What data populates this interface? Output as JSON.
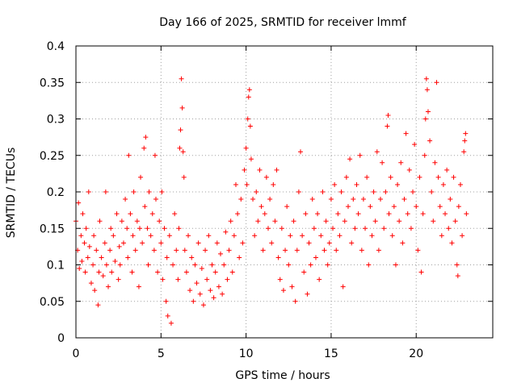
{
  "chart_data": {
    "type": "scatter",
    "title": "Day 166 of 2025, SRMTID for receiver lmmf",
    "xlabel": "GPS time / hours",
    "ylabel": "SRMTID / TECUs",
    "xlim": [
      0,
      24.5
    ],
    "ylim": [
      0,
      0.4
    ],
    "xticks": [
      0,
      5,
      10,
      15,
      20
    ],
    "xtick_labels": [
      "0",
      "5",
      "10",
      "15",
      "20"
    ],
    "yticks": [
      0,
      0.05,
      0.1,
      0.15,
      0.2,
      0.25,
      0.3,
      0.35,
      0.4
    ],
    "ytick_labels": [
      "0",
      "0.05",
      "0.1",
      "0.15",
      "0.2",
      "0.25",
      "0.3",
      "0.35",
      "0.4"
    ],
    "grid": true,
    "marker": "plus",
    "color": "#ff0000",
    "series": [
      {
        "name": "SRMTID",
        "points": [
          [
            0.0,
            0.16
          ],
          [
            0.1,
            0.12
          ],
          [
            0.15,
            0.185
          ],
          [
            0.2,
            0.095
          ],
          [
            0.3,
            0.14
          ],
          [
            0.35,
            0.105
          ],
          [
            0.4,
            0.17
          ],
          [
            0.5,
            0.13
          ],
          [
            0.55,
            0.09
          ],
          [
            0.6,
            0.15
          ],
          [
            0.7,
            0.11
          ],
          [
            0.75,
            0.2
          ],
          [
            0.8,
            0.125
          ],
          [
            0.9,
            0.075
          ],
          [
            1.0,
            0.1
          ],
          [
            1.05,
            0.14
          ],
          [
            1.1,
            0.065
          ],
          [
            1.2,
            0.12
          ],
          [
            1.3,
            0.045
          ],
          [
            1.35,
            0.09
          ],
          [
            1.4,
            0.16
          ],
          [
            1.5,
            0.11
          ],
          [
            1.6,
            0.085
          ],
          [
            1.7,
            0.13
          ],
          [
            1.75,
            0.2
          ],
          [
            1.8,
            0.1
          ],
          [
            1.9,
            0.07
          ],
          [
            2.0,
            0.12
          ],
          [
            2.05,
            0.15
          ],
          [
            2.1,
            0.09
          ],
          [
            2.2,
            0.14
          ],
          [
            2.3,
            0.105
          ],
          [
            2.4,
            0.17
          ],
          [
            2.5,
            0.08
          ],
          [
            2.55,
            0.125
          ],
          [
            2.6,
            0.1
          ],
          [
            2.7,
            0.16
          ],
          [
            2.8,
            0.13
          ],
          [
            2.9,
            0.19
          ],
          [
            3.0,
            0.15
          ],
          [
            3.05,
            0.11
          ],
          [
            3.1,
            0.25
          ],
          [
            3.2,
            0.17
          ],
          [
            3.3,
            0.09
          ],
          [
            3.35,
            0.14
          ],
          [
            3.4,
            0.2
          ],
          [
            3.5,
            0.12
          ],
          [
            3.6,
            0.16
          ],
          [
            3.7,
            0.07
          ],
          [
            3.75,
            0.15
          ],
          [
            3.8,
            0.22
          ],
          [
            3.9,
            0.13
          ],
          [
            4.0,
            0.26
          ],
          [
            4.05,
            0.18
          ],
          [
            4.1,
            0.275
          ],
          [
            4.2,
            0.15
          ],
          [
            4.25,
            0.1
          ],
          [
            4.3,
            0.2
          ],
          [
            4.4,
            0.14
          ],
          [
            4.5,
            0.17
          ],
          [
            4.6,
            0.12
          ],
          [
            4.65,
            0.25
          ],
          [
            4.7,
            0.19
          ],
          [
            4.8,
            0.09
          ],
          [
            4.9,
            0.16
          ],
          [
            5.0,
            0.13
          ],
          [
            5.05,
            0.2
          ],
          [
            5.1,
            0.08
          ],
          [
            5.2,
            0.15
          ],
          [
            5.3,
            0.05
          ],
          [
            5.35,
            0.11
          ],
          [
            5.4,
            0.03
          ],
          [
            5.5,
            0.14
          ],
          [
            5.6,
            0.02
          ],
          [
            5.7,
            0.1
          ],
          [
            5.8,
            0.17
          ],
          [
            5.9,
            0.12
          ],
          [
            6.0,
            0.08
          ],
          [
            6.05,
            0.15
          ],
          [
            6.1,
            0.26
          ],
          [
            6.15,
            0.285
          ],
          [
            6.2,
            0.355
          ],
          [
            6.25,
            0.315
          ],
          [
            6.3,
            0.255
          ],
          [
            6.35,
            0.22
          ],
          [
            6.4,
            0.12
          ],
          [
            6.5,
            0.09
          ],
          [
            6.6,
            0.14
          ],
          [
            6.7,
            0.065
          ],
          [
            6.8,
            0.11
          ],
          [
            6.9,
            0.05
          ],
          [
            7.0,
            0.1
          ],
          [
            7.1,
            0.075
          ],
          [
            7.2,
            0.13
          ],
          [
            7.3,
            0.06
          ],
          [
            7.4,
            0.095
          ],
          [
            7.5,
            0.045
          ],
          [
            7.6,
            0.12
          ],
          [
            7.7,
            0.08
          ],
          [
            7.8,
            0.14
          ],
          [
            7.9,
            0.065
          ],
          [
            8.0,
            0.1
          ],
          [
            8.1,
            0.055
          ],
          [
            8.2,
            0.09
          ],
          [
            8.3,
            0.13
          ],
          [
            8.4,
            0.07
          ],
          [
            8.5,
            0.115
          ],
          [
            8.6,
            0.06
          ],
          [
            8.7,
            0.1
          ],
          [
            8.8,
            0.145
          ],
          [
            8.9,
            0.08
          ],
          [
            9.0,
            0.12
          ],
          [
            9.1,
            0.16
          ],
          [
            9.2,
            0.09
          ],
          [
            9.3,
            0.14
          ],
          [
            9.4,
            0.21
          ],
          [
            9.5,
            0.17
          ],
          [
            9.6,
            0.11
          ],
          [
            9.7,
            0.19
          ],
          [
            9.8,
            0.13
          ],
          [
            9.9,
            0.23
          ],
          [
            10.0,
            0.26
          ],
          [
            10.05,
            0.21
          ],
          [
            10.1,
            0.3
          ],
          [
            10.15,
            0.33
          ],
          [
            10.2,
            0.34
          ],
          [
            10.25,
            0.29
          ],
          [
            10.3,
            0.245
          ],
          [
            10.4,
            0.19
          ],
          [
            10.5,
            0.14
          ],
          [
            10.6,
            0.2
          ],
          [
            10.7,
            0.16
          ],
          [
            10.8,
            0.23
          ],
          [
            10.9,
            0.18
          ],
          [
            11.0,
            0.12
          ],
          [
            11.1,
            0.17
          ],
          [
            11.2,
            0.22
          ],
          [
            11.3,
            0.15
          ],
          [
            11.4,
            0.19
          ],
          [
            11.5,
            0.13
          ],
          [
            11.6,
            0.21
          ],
          [
            11.7,
            0.16
          ],
          [
            11.8,
            0.23
          ],
          [
            11.9,
            0.11
          ],
          [
            12.0,
            0.08
          ],
          [
            12.1,
            0.15
          ],
          [
            12.2,
            0.065
          ],
          [
            12.3,
            0.12
          ],
          [
            12.4,
            0.18
          ],
          [
            12.5,
            0.1
          ],
          [
            12.6,
            0.14
          ],
          [
            12.7,
            0.07
          ],
          [
            12.8,
            0.16
          ],
          [
            12.9,
            0.05
          ],
          [
            13.0,
            0.12
          ],
          [
            13.1,
            0.2
          ],
          [
            13.2,
            0.255
          ],
          [
            13.3,
            0.14
          ],
          [
            13.4,
            0.09
          ],
          [
            13.5,
            0.17
          ],
          [
            13.6,
            0.06
          ],
          [
            13.7,
            0.13
          ],
          [
            13.8,
            0.1
          ],
          [
            13.9,
            0.19
          ],
          [
            14.0,
            0.15
          ],
          [
            14.1,
            0.11
          ],
          [
            14.2,
            0.17
          ],
          [
            14.3,
            0.08
          ],
          [
            14.4,
            0.14
          ],
          [
            14.5,
            0.2
          ],
          [
            14.6,
            0.12
          ],
          [
            14.7,
            0.16
          ],
          [
            14.8,
            0.1
          ],
          [
            14.9,
            0.13
          ],
          [
            15.0,
            0.19
          ],
          [
            15.1,
            0.15
          ],
          [
            15.2,
            0.21
          ],
          [
            15.3,
            0.12
          ],
          [
            15.4,
            0.17
          ],
          [
            15.5,
            0.14
          ],
          [
            15.6,
            0.2
          ],
          [
            15.7,
            0.07
          ],
          [
            15.8,
            0.16
          ],
          [
            15.9,
            0.22
          ],
          [
            16.0,
            0.18
          ],
          [
            16.1,
            0.245
          ],
          [
            16.2,
            0.13
          ],
          [
            16.3,
            0.19
          ],
          [
            16.4,
            0.15
          ],
          [
            16.5,
            0.21
          ],
          [
            16.6,
            0.17
          ],
          [
            16.7,
            0.25
          ],
          [
            16.8,
            0.12
          ],
          [
            16.9,
            0.19
          ],
          [
            17.0,
            0.15
          ],
          [
            17.1,
            0.22
          ],
          [
            17.2,
            0.1
          ],
          [
            17.3,
            0.18
          ],
          [
            17.4,
            0.14
          ],
          [
            17.5,
            0.2
          ],
          [
            17.6,
            0.16
          ],
          [
            17.7,
            0.255
          ],
          [
            17.8,
            0.12
          ],
          [
            17.9,
            0.19
          ],
          [
            18.0,
            0.24
          ],
          [
            18.1,
            0.15
          ],
          [
            18.2,
            0.2
          ],
          [
            18.3,
            0.29
          ],
          [
            18.35,
            0.305
          ],
          [
            18.4,
            0.17
          ],
          [
            18.5,
            0.22
          ],
          [
            18.6,
            0.14
          ],
          [
            18.7,
            0.18
          ],
          [
            18.8,
            0.1
          ],
          [
            18.9,
            0.21
          ],
          [
            19.0,
            0.16
          ],
          [
            19.1,
            0.24
          ],
          [
            19.2,
            0.13
          ],
          [
            19.3,
            0.19
          ],
          [
            19.4,
            0.28
          ],
          [
            19.5,
            0.17
          ],
          [
            19.6,
            0.23
          ],
          [
            19.7,
            0.15
          ],
          [
            19.8,
            0.2
          ],
          [
            19.9,
            0.265
          ],
          [
            20.0,
            0.18
          ],
          [
            20.1,
            0.12
          ],
          [
            20.2,
            0.22
          ],
          [
            20.3,
            0.09
          ],
          [
            20.4,
            0.17
          ],
          [
            20.5,
            0.25
          ],
          [
            20.55,
            0.3
          ],
          [
            20.6,
            0.355
          ],
          [
            20.65,
            0.34
          ],
          [
            20.7,
            0.31
          ],
          [
            20.8,
            0.27
          ],
          [
            20.9,
            0.2
          ],
          [
            21.0,
            0.16
          ],
          [
            21.1,
            0.24
          ],
          [
            21.2,
            0.35
          ],
          [
            21.3,
            0.22
          ],
          [
            21.4,
            0.18
          ],
          [
            21.5,
            0.14
          ],
          [
            21.6,
            0.21
          ],
          [
            21.7,
            0.17
          ],
          [
            21.8,
            0.23
          ],
          [
            21.9,
            0.15
          ],
          [
            22.0,
            0.19
          ],
          [
            22.1,
            0.13
          ],
          [
            22.2,
            0.22
          ],
          [
            22.3,
            0.16
          ],
          [
            22.4,
            0.1
          ],
          [
            22.45,
            0.085
          ],
          [
            22.5,
            0.18
          ],
          [
            22.6,
            0.21
          ],
          [
            22.7,
            0.14
          ],
          [
            22.8,
            0.255
          ],
          [
            22.85,
            0.27
          ],
          [
            22.9,
            0.28
          ],
          [
            22.95,
            0.17
          ]
        ]
      }
    ]
  }
}
